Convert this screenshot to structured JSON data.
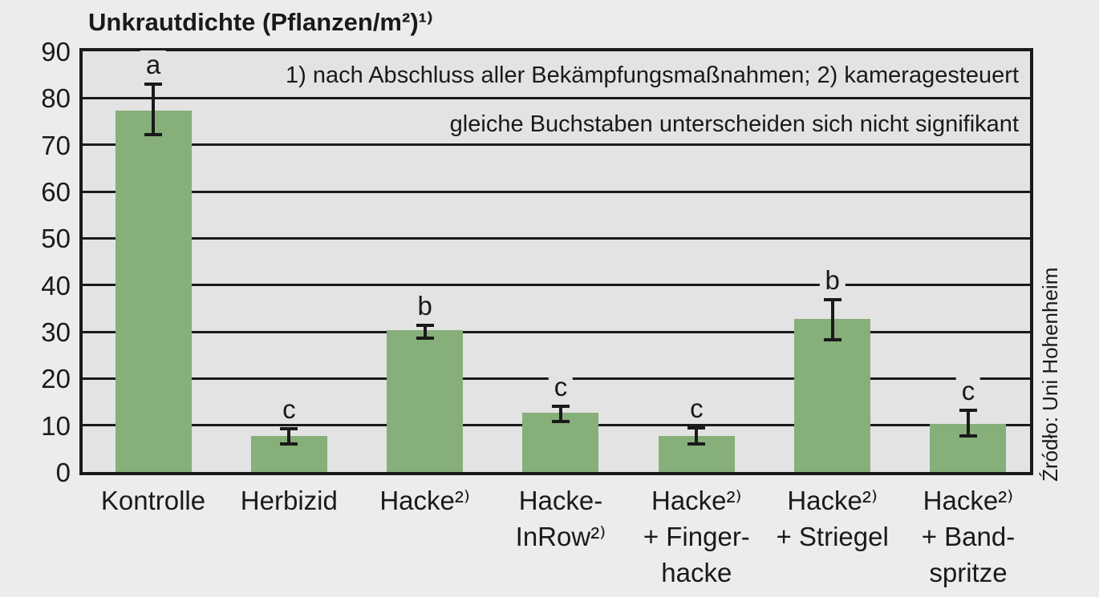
{
  "title": "Unkrautdichte (Pflanzen/m²)¹⁾",
  "annotations": {
    "footnotes": "1) nach Abschluss aller Bekämpfungsmaßnahmen; 2) kameragesteuert",
    "significance_note": "gleiche Buchstaben unterscheiden sich nicht signifikant"
  },
  "source": "Źródło: Uni Hohenheim",
  "colors": {
    "bar": "#86af7a",
    "plot_bg": "#e3e3e3",
    "page_bg": "#ececec",
    "line": "#1a1a1a"
  },
  "chart_data": {
    "type": "bar",
    "title": "Unkrautdichte (Pflanzen/m²)¹⁾",
    "ylabel": "Unkrautdichte (Pflanzen/m²), nach Abschluss aller Bekämpfungsmaßnahmen",
    "ylim": [
      0,
      90
    ],
    "ytick_step": 10,
    "grid": true,
    "legend": false,
    "categories": [
      "Kontrolle",
      "Herbizid",
      "Hacke²⁾",
      "Hacke-InRow²⁾",
      "Hacke²⁾ + Fingerhacke",
      "Hacke²⁾ + Striegel",
      "Hacke²⁾ + Bandspritze"
    ],
    "category_lines": [
      [
        "Kontrolle"
      ],
      [
        "Herbizid"
      ],
      [
        "Hacke²⁾"
      ],
      [
        "Hacke-",
        "InRow²⁾"
      ],
      [
        "Hacke²⁾",
        "+ Finger-",
        "hacke"
      ],
      [
        "Hacke²⁾",
        "+ Striegel"
      ],
      [
        "Hacke²⁾",
        "+ Band-",
        "spritze"
      ]
    ],
    "values": [
      77.4,
      7.8,
      30.4,
      12.7,
      7.8,
      32.7,
      10.3
    ],
    "error_high": [
      83.4,
      9.6,
      31.7,
      14.4,
      9.8,
      37.2,
      13.5
    ],
    "error_low": [
      71.9,
      5.6,
      28.2,
      10.5,
      5.6,
      28.0,
      7.3
    ],
    "significance_letters": [
      "a",
      "c",
      "b",
      "c",
      "c",
      "b",
      "c"
    ]
  }
}
